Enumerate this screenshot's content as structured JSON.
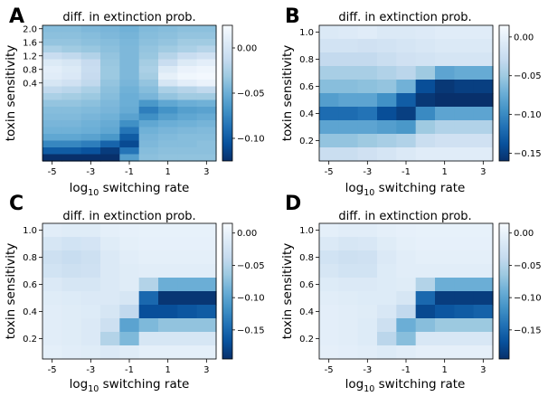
{
  "figure": {
    "panel_count": 4
  },
  "chart_data": [
    {
      "type": "heatmap",
      "panel_letter": "A",
      "title": "diff. in extinction prob.",
      "xlabel": "log10 switching rate",
      "ylabel": "toxin sensitivity",
      "x": [
        -5,
        -4,
        -3,
        -2,
        -1,
        0,
        1,
        2,
        3
      ],
      "y": [
        2.0,
        1.9,
        1.8,
        1.7,
        1.6,
        1.5,
        1.4,
        1.3,
        1.2,
        1.1,
        1.0,
        0.9,
        0.8,
        0.7,
        0.6,
        0.5,
        0.4,
        0.3,
        0.2,
        0.1
      ],
      "xticks": [
        "-5",
        "-3",
        "-1",
        "1",
        "3"
      ],
      "yticks": [
        "2.0",
        "1.6",
        "1.2",
        "0.8",
        "0.4"
      ],
      "colorbar": {
        "min": -0.125,
        "max": 0.025,
        "ticks": [
          "0.00",
          "−0.05",
          "−0.10"
        ],
        "tick_values": [
          0.0,
          -0.05,
          -0.1
        ],
        "cmap": "Blues_r"
      },
      "values": [
        [
          -0.04,
          -0.04,
          -0.043,
          -0.045,
          -0.048,
          -0.042,
          -0.04,
          -0.038,
          -0.038
        ],
        [
          -0.038,
          -0.038,
          -0.04,
          -0.043,
          -0.046,
          -0.04,
          -0.038,
          -0.035,
          -0.035
        ],
        [
          -0.035,
          -0.035,
          -0.038,
          -0.04,
          -0.044,
          -0.038,
          -0.035,
          -0.03,
          -0.03
        ],
        [
          -0.025,
          -0.03,
          -0.033,
          -0.038,
          -0.043,
          -0.035,
          -0.03,
          -0.025,
          -0.02
        ],
        [
          -0.01,
          -0.015,
          -0.022,
          -0.035,
          -0.043,
          -0.033,
          -0.02,
          -0.01,
          -0.005
        ],
        [
          0.005,
          0.0,
          -0.012,
          -0.033,
          -0.043,
          -0.028,
          -0.01,
          0.005,
          0.01
        ],
        [
          0.01,
          0.005,
          -0.01,
          -0.032,
          -0.043,
          -0.025,
          0.005,
          0.015,
          0.018
        ],
        [
          0.008,
          0.003,
          -0.012,
          -0.032,
          -0.043,
          -0.028,
          0.012,
          0.02,
          0.022
        ],
        [
          0.0,
          -0.005,
          -0.015,
          -0.035,
          -0.045,
          -0.035,
          0.0,
          0.01,
          0.015
        ],
        [
          -0.015,
          -0.018,
          -0.025,
          -0.038,
          -0.048,
          -0.04,
          -0.025,
          -0.02,
          -0.015
        ],
        [
          -0.025,
          -0.028,
          -0.032,
          -0.04,
          -0.05,
          -0.045,
          -0.035,
          -0.03,
          -0.03
        ],
        [
          -0.035,
          -0.035,
          -0.038,
          -0.043,
          -0.05,
          -0.065,
          -0.055,
          -0.05,
          -0.048
        ],
        [
          -0.04,
          -0.04,
          -0.042,
          -0.045,
          -0.052,
          -0.08,
          -0.068,
          -0.06,
          -0.058
        ],
        [
          -0.042,
          -0.042,
          -0.045,
          -0.048,
          -0.058,
          -0.07,
          -0.06,
          -0.055,
          -0.052
        ],
        [
          -0.045,
          -0.045,
          -0.048,
          -0.052,
          -0.07,
          -0.055,
          -0.05,
          -0.048,
          -0.046
        ],
        [
          -0.048,
          -0.048,
          -0.05,
          -0.055,
          -0.085,
          -0.048,
          -0.045,
          -0.043,
          -0.042
        ],
        [
          -0.055,
          -0.055,
          -0.058,
          -0.065,
          -0.1,
          -0.045,
          -0.042,
          -0.04,
          -0.04
        ],
        [
          -0.075,
          -0.075,
          -0.08,
          -0.095,
          -0.11,
          -0.043,
          -0.04,
          -0.04,
          -0.038
        ],
        [
          -0.1,
          -0.1,
          -0.105,
          -0.118,
          -0.085,
          -0.04,
          -0.038,
          -0.038,
          -0.038
        ],
        [
          -0.125,
          -0.125,
          -0.125,
          -0.125,
          -0.06,
          -0.038,
          -0.036,
          -0.036,
          -0.036
        ]
      ]
    },
    {
      "type": "heatmap",
      "panel_letter": "B",
      "title": "diff. in extinction prob.",
      "xlabel": "log10 switching rate",
      "ylabel": "toxin sensitivity",
      "x": [
        -5,
        -4,
        -3,
        -2,
        -1,
        0,
        1,
        2,
        3
      ],
      "y": [
        1.0,
        0.9,
        0.8,
        0.7,
        0.6,
        0.5,
        0.4,
        0.3,
        0.2,
        0.1
      ],
      "xticks": [
        "-5",
        "-3",
        "-1",
        "1",
        "3"
      ],
      "yticks": [
        "1.0",
        "0.8",
        "0.6",
        "0.4",
        "0.2"
      ],
      "colorbar": {
        "min": -0.16,
        "max": 0.015,
        "ticks": [
          "0.00",
          "−0.05",
          "−0.10",
          "−0.15"
        ],
        "tick_values": [
          0.0,
          -0.05,
          -0.1,
          -0.15
        ],
        "cmap": "Blues_r"
      },
      "values": [
        [
          -0.01,
          -0.008,
          -0.005,
          -0.01,
          -0.01,
          -0.008,
          -0.005,
          -0.005,
          -0.005
        ],
        [
          -0.018,
          -0.018,
          -0.02,
          -0.018,
          -0.015,
          -0.012,
          -0.01,
          -0.01,
          -0.01
        ],
        [
          -0.03,
          -0.03,
          -0.03,
          -0.025,
          -0.02,
          -0.018,
          -0.015,
          -0.015,
          -0.015
        ],
        [
          -0.045,
          -0.045,
          -0.045,
          -0.04,
          -0.035,
          -0.05,
          -0.08,
          -0.075,
          -0.075
        ],
        [
          -0.06,
          -0.06,
          -0.058,
          -0.055,
          -0.07,
          -0.14,
          -0.155,
          -0.15,
          -0.15
        ],
        [
          -0.085,
          -0.08,
          -0.08,
          -0.095,
          -0.13,
          -0.155,
          -0.16,
          -0.16,
          -0.16
        ],
        [
          -0.12,
          -0.12,
          -0.115,
          -0.14,
          -0.15,
          -0.1,
          -0.08,
          -0.08,
          -0.08
        ],
        [
          -0.08,
          -0.08,
          -0.08,
          -0.085,
          -0.09,
          -0.05,
          -0.04,
          -0.04,
          -0.04
        ],
        [
          -0.055,
          -0.055,
          -0.05,
          -0.045,
          -0.04,
          -0.025,
          -0.02,
          -0.02,
          -0.02
        ],
        [
          -0.025,
          -0.025,
          -0.02,
          -0.015,
          -0.01,
          -0.005,
          -0.005,
          -0.005,
          -0.005
        ]
      ]
    },
    {
      "type": "heatmap",
      "panel_letter": "C",
      "title": "diff. in extinction prob.",
      "xlabel": "log10 switching rate",
      "ylabel": "toxin sensitivity",
      "x": [
        -5,
        -4,
        -3,
        -2,
        -1,
        0,
        1,
        2,
        3
      ],
      "y": [
        1.0,
        0.9,
        0.8,
        0.7,
        0.6,
        0.5,
        0.4,
        0.3,
        0.2,
        0.1
      ],
      "xticks": [
        "-5",
        "-3",
        "-1",
        "1",
        "3"
      ],
      "yticks": [
        "1.0",
        "0.8",
        "0.6",
        "0.4",
        "0.2"
      ],
      "colorbar": {
        "min": -0.195,
        "max": 0.015,
        "ticks": [
          "0.00",
          "−0.05",
          "−0.10",
          "−0.15"
        ],
        "tick_values": [
          0.0,
          -0.05,
          -0.1,
          -0.15
        ],
        "cmap": "Blues_r"
      },
      "values": [
        [
          -0.008,
          -0.01,
          -0.01,
          -0.005,
          -0.003,
          -0.002,
          -0.002,
          -0.002,
          -0.002
        ],
        [
          -0.02,
          -0.025,
          -0.022,
          -0.01,
          -0.005,
          -0.003,
          -0.003,
          -0.003,
          -0.003
        ],
        [
          -0.03,
          -0.035,
          -0.03,
          -0.015,
          -0.008,
          -0.005,
          -0.005,
          -0.005,
          -0.005
        ],
        [
          -0.025,
          -0.03,
          -0.028,
          -0.015,
          -0.01,
          -0.008,
          -0.008,
          -0.008,
          -0.008
        ],
        [
          -0.015,
          -0.02,
          -0.02,
          -0.015,
          -0.01,
          -0.05,
          -0.09,
          -0.09,
          -0.09
        ],
        [
          -0.01,
          -0.012,
          -0.015,
          -0.015,
          -0.02,
          -0.15,
          -0.19,
          -0.19,
          -0.19
        ],
        [
          -0.008,
          -0.01,
          -0.012,
          -0.02,
          -0.04,
          -0.17,
          -0.17,
          -0.165,
          -0.16
        ],
        [
          -0.008,
          -0.01,
          -0.015,
          -0.03,
          -0.1,
          -0.08,
          -0.07,
          -0.07,
          -0.07
        ],
        [
          -0.008,
          -0.01,
          -0.015,
          -0.05,
          -0.08,
          -0.02,
          -0.02,
          -0.02,
          -0.02
        ],
        [
          -0.005,
          -0.008,
          -0.01,
          -0.015,
          -0.01,
          -0.005,
          -0.005,
          -0.005,
          -0.005
        ]
      ]
    },
    {
      "type": "heatmap",
      "panel_letter": "D",
      "title": "diff. in extinction prob.",
      "xlabel": "log10 switching rate",
      "ylabel": "toxin sensitivity",
      "x": [
        -5,
        -4,
        -3,
        -2,
        -1,
        0,
        1,
        2,
        3
      ],
      "y": [
        1.0,
        0.9,
        0.8,
        0.7,
        0.6,
        0.5,
        0.4,
        0.3,
        0.2,
        0.1
      ],
      "xticks": [
        "-5",
        "-3",
        "-1",
        "1",
        "3"
      ],
      "yticks": [
        "1.0",
        "0.8",
        "0.6",
        "0.4",
        "0.2"
      ],
      "colorbar": {
        "min": -0.195,
        "max": 0.015,
        "ticks": [
          "0.00",
          "−0.05",
          "−0.10",
          "−0.15"
        ],
        "tick_values": [
          0.0,
          -0.05,
          -0.1,
          -0.15
        ],
        "cmap": "Blues_r"
      },
      "values": [
        [
          -0.005,
          -0.008,
          -0.008,
          -0.005,
          -0.003,
          -0.002,
          -0.002,
          -0.002,
          -0.002
        ],
        [
          -0.015,
          -0.02,
          -0.018,
          -0.01,
          -0.005,
          -0.003,
          -0.003,
          -0.003,
          -0.003
        ],
        [
          -0.025,
          -0.03,
          -0.028,
          -0.015,
          -0.008,
          -0.005,
          -0.005,
          -0.005,
          -0.005
        ],
        [
          -0.02,
          -0.025,
          -0.025,
          -0.012,
          -0.008,
          -0.008,
          -0.008,
          -0.008,
          -0.008
        ],
        [
          -0.012,
          -0.015,
          -0.015,
          -0.012,
          -0.01,
          -0.05,
          -0.09,
          -0.09,
          -0.09
        ],
        [
          -0.008,
          -0.01,
          -0.012,
          -0.012,
          -0.02,
          -0.15,
          -0.185,
          -0.185,
          -0.185
        ],
        [
          -0.006,
          -0.008,
          -0.01,
          -0.018,
          -0.04,
          -0.175,
          -0.165,
          -0.16,
          -0.155
        ],
        [
          -0.006,
          -0.008,
          -0.012,
          -0.03,
          -0.09,
          -0.075,
          -0.065,
          -0.065,
          -0.065
        ],
        [
          -0.006,
          -0.008,
          -0.012,
          -0.045,
          -0.075,
          -0.018,
          -0.018,
          -0.018,
          -0.018
        ],
        [
          -0.004,
          -0.006,
          -0.008,
          -0.012,
          -0.008,
          -0.004,
          -0.004,
          -0.004,
          -0.004
        ]
      ]
    }
  ]
}
